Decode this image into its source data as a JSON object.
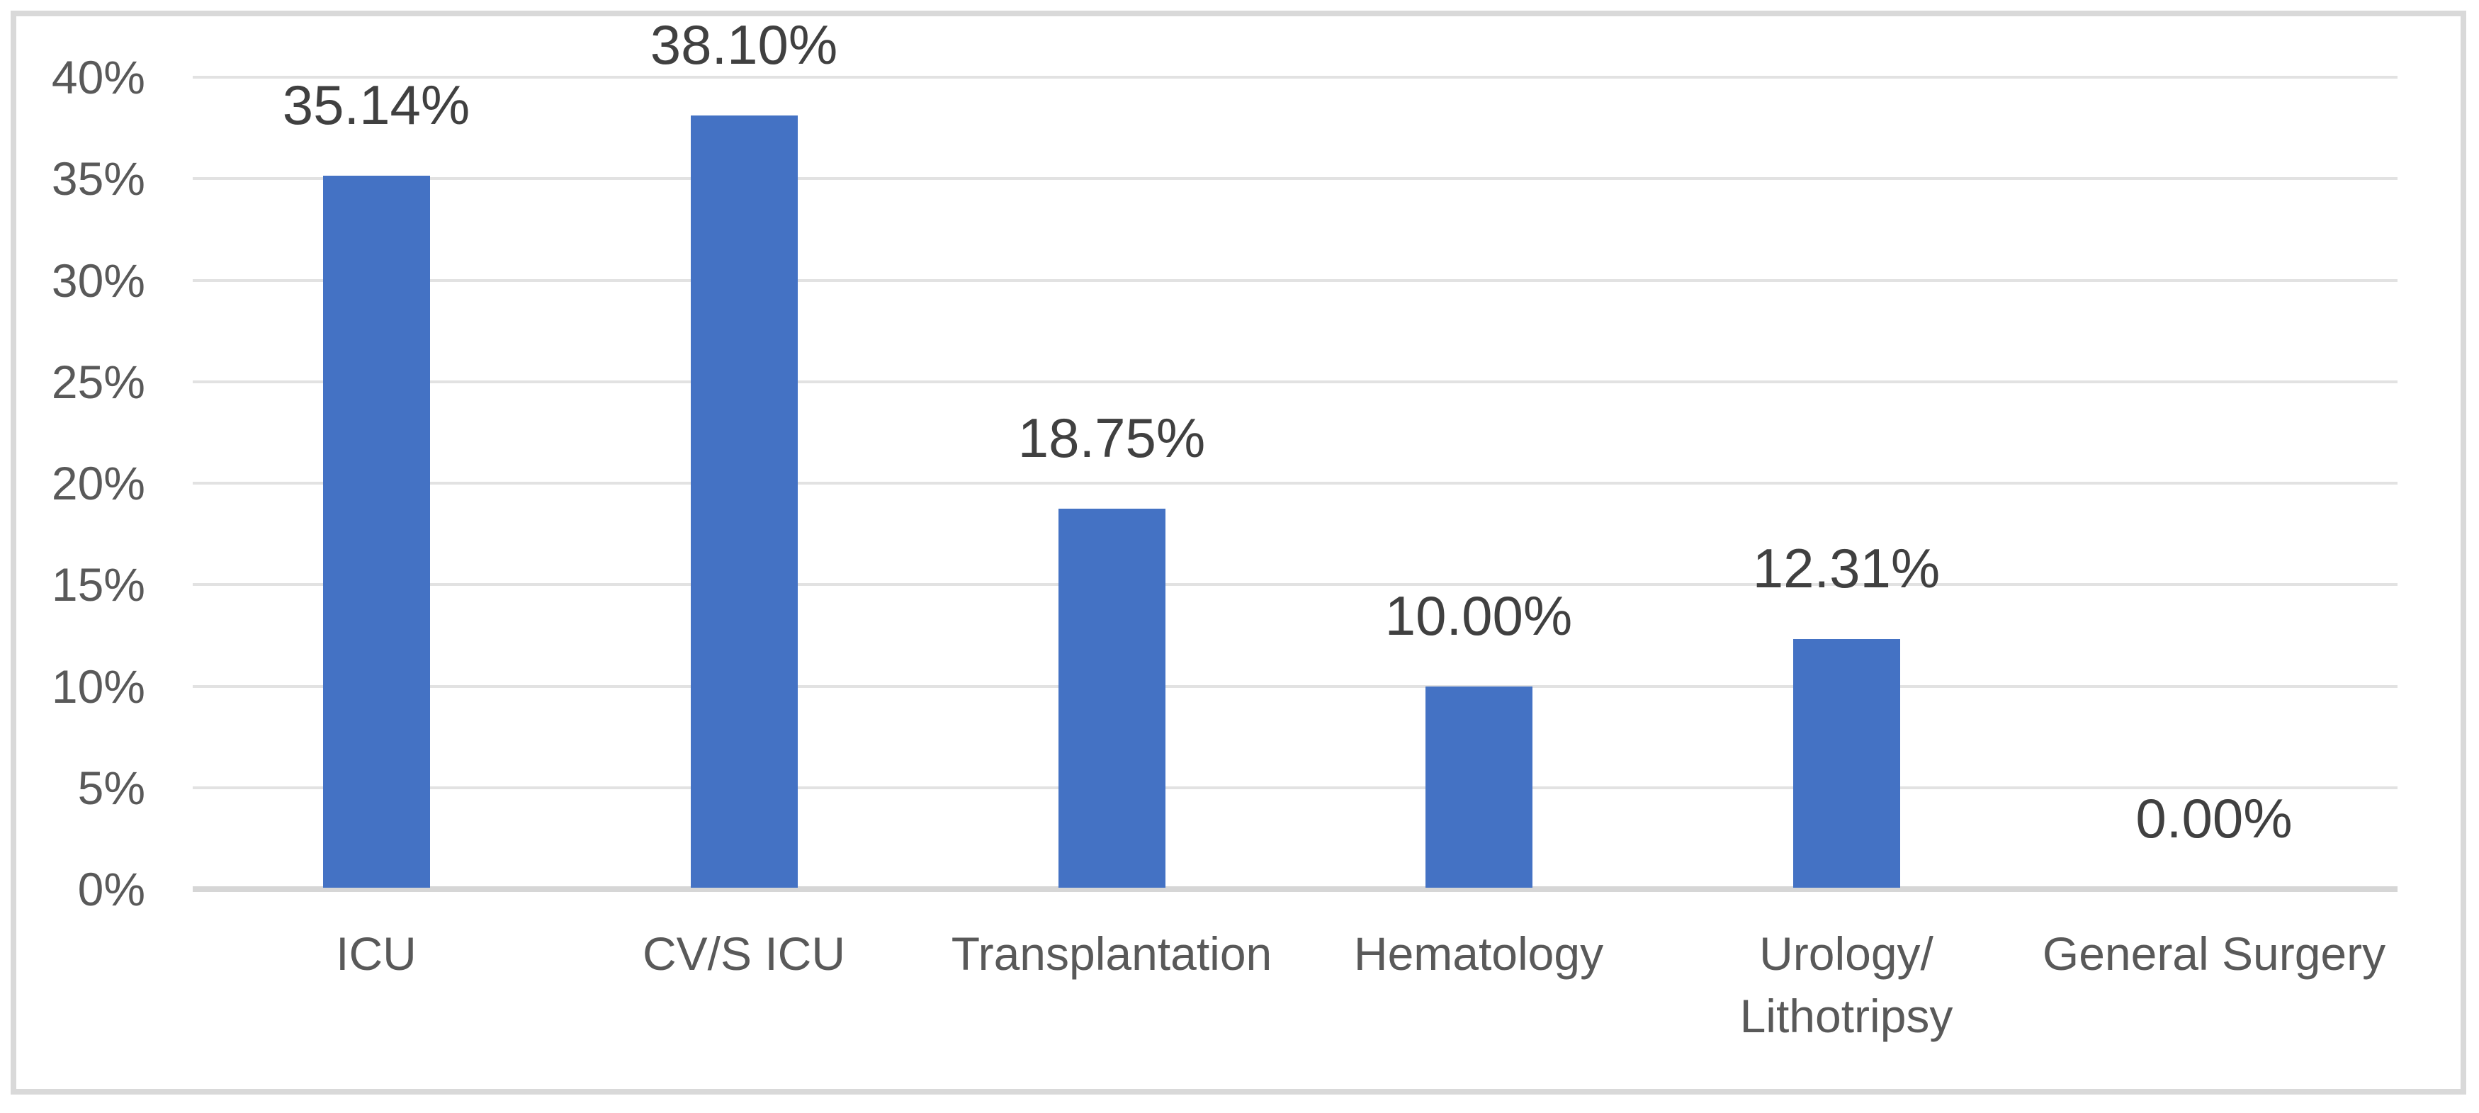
{
  "chart_data": {
    "type": "bar",
    "title": "",
    "xlabel": "",
    "ylabel": "",
    "categories": [
      "ICU",
      "CV/S ICU",
      "Transplantation",
      "Hematology",
      "Urology/\nLithotripsy",
      "General Surgery"
    ],
    "values": [
      35.14,
      38.1,
      18.75,
      10.0,
      12.31,
      0.0
    ],
    "data_labels": [
      "35.14%",
      "38.10%",
      "18.75%",
      "10.00%",
      "12.31%",
      "0.00%"
    ],
    "y_ticks": [
      "0%",
      "5%",
      "10%",
      "15%",
      "20%",
      "25%",
      "30%",
      "35%",
      "40%"
    ],
    "ylim": [
      0,
      40
    ],
    "y_tick_step": 5,
    "grid": true,
    "legend": false,
    "colors": {
      "bar": "#4472C4",
      "gridline": "#E2E2E2",
      "axis_line": "#D6D6D6",
      "frame_border": "#D9D9D9",
      "tick_label": "#595959",
      "category_label": "#595959",
      "data_label": "#404040",
      "background": "#FFFFFF"
    }
  }
}
